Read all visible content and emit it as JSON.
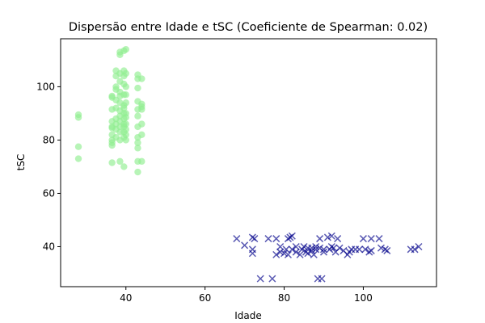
{
  "chart_data": {
    "type": "scatter",
    "title": "Dispersão entre Idade e tSC (Coeficiente de Spearman: 0.02)",
    "xlabel": "Idade",
    "ylabel": "tSC",
    "xlim": [
      23.5,
      118.5
    ],
    "ylim": [
      25,
      118
    ],
    "xticks": [
      40,
      60,
      80,
      100
    ],
    "yticks": [
      40,
      60,
      80,
      100
    ],
    "grid": false,
    "series": [
      {
        "marker": "circle",
        "color": "#90ee90",
        "points": [
          [
            28,
            89.5
          ],
          [
            28,
            88.5
          ],
          [
            28,
            77.5
          ],
          [
            28,
            73
          ],
          [
            36.5,
            96.5
          ],
          [
            36.5,
            96
          ],
          [
            36.5,
            91.5
          ],
          [
            36.5,
            87
          ],
          [
            36.5,
            85
          ],
          [
            36.5,
            84.5
          ],
          [
            36.5,
            82
          ],
          [
            36.5,
            80
          ],
          [
            36.5,
            79
          ],
          [
            36.5,
            78
          ],
          [
            36.5,
            71.5
          ],
          [
            37.5,
            106
          ],
          [
            37.5,
            104
          ],
          [
            37.5,
            100
          ],
          [
            37.5,
            99
          ],
          [
            37.5,
            95
          ],
          [
            37.5,
            92
          ],
          [
            37.5,
            88
          ],
          [
            37.5,
            86
          ],
          [
            37.5,
            84
          ],
          [
            37.5,
            81
          ],
          [
            38.5,
            113
          ],
          [
            38.5,
            112
          ],
          [
            38.5,
            105
          ],
          [
            38.5,
            102
          ],
          [
            38.5,
            98
          ],
          [
            38.5,
            96.5
          ],
          [
            38.5,
            94
          ],
          [
            38.5,
            91
          ],
          [
            38.5,
            89
          ],
          [
            38.5,
            87
          ],
          [
            38.5,
            85
          ],
          [
            38.5,
            83
          ],
          [
            38.5,
            80
          ],
          [
            38.5,
            72
          ],
          [
            39.5,
            113.5
          ],
          [
            39.5,
            106
          ],
          [
            39.5,
            104
          ],
          [
            39.5,
            101
          ],
          [
            39.5,
            97
          ],
          [
            39.5,
            93
          ],
          [
            39.5,
            92
          ],
          [
            39.5,
            90
          ],
          [
            39.5,
            88
          ],
          [
            39.5,
            86
          ],
          [
            39.5,
            85
          ],
          [
            39.5,
            83
          ],
          [
            39.5,
            81
          ],
          [
            39.5,
            70
          ],
          [
            40,
            114
          ],
          [
            40,
            105
          ],
          [
            40,
            100
          ],
          [
            40,
            97
          ],
          [
            40,
            94
          ],
          [
            40,
            90
          ],
          [
            40,
            88.5
          ],
          [
            40,
            86
          ],
          [
            40,
            84
          ],
          [
            40,
            82
          ],
          [
            40,
            80
          ],
          [
            43,
            104.5
          ],
          [
            43,
            103
          ],
          [
            43,
            99.5
          ],
          [
            43,
            94.5
          ],
          [
            43,
            91.5
          ],
          [
            43,
            89
          ],
          [
            43,
            85
          ],
          [
            43,
            81
          ],
          [
            43,
            79
          ],
          [
            43,
            77
          ],
          [
            43,
            72
          ],
          [
            43,
            68
          ],
          [
            44,
            103
          ],
          [
            44,
            93.5
          ],
          [
            44,
            92.5
          ],
          [
            44,
            91.5
          ],
          [
            44,
            86
          ],
          [
            44,
            82
          ],
          [
            44,
            72
          ]
        ]
      },
      {
        "marker": "x",
        "color": "#00008b",
        "points": [
          [
            68,
            43
          ],
          [
            70,
            40.5
          ],
          [
            72,
            43.5
          ],
          [
            72,
            39
          ],
          [
            72,
            37.5
          ],
          [
            72.5,
            43
          ],
          [
            74,
            28
          ],
          [
            76,
            43
          ],
          [
            77,
            28
          ],
          [
            78,
            43
          ],
          [
            78,
            37
          ],
          [
            79,
            38
          ],
          [
            79,
            40
          ],
          [
            80,
            37.5
          ],
          [
            80.5,
            39
          ],
          [
            81,
            43
          ],
          [
            81,
            37
          ],
          [
            81.5,
            43.5
          ],
          [
            82,
            44
          ],
          [
            82,
            39
          ],
          [
            83,
            40
          ],
          [
            83,
            38
          ],
          [
            84,
            37
          ],
          [
            84.5,
            39
          ],
          [
            85,
            40
          ],
          [
            85.5,
            38
          ],
          [
            86,
            39.5
          ],
          [
            86,
            37.5
          ],
          [
            87,
            39.5
          ],
          [
            87,
            38.5
          ],
          [
            87.5,
            37
          ],
          [
            88,
            40
          ],
          [
            88,
            39
          ],
          [
            88.5,
            28
          ],
          [
            89,
            43
          ],
          [
            89,
            39.5
          ],
          [
            89.5,
            28
          ],
          [
            90,
            39
          ],
          [
            90,
            38
          ],
          [
            91,
            43.5
          ],
          [
            91.5,
            39
          ],
          [
            92,
            44
          ],
          [
            92,
            40
          ],
          [
            92.5,
            39.5
          ],
          [
            93,
            38
          ],
          [
            93.5,
            43
          ],
          [
            94,
            39.5
          ],
          [
            95,
            38.5
          ],
          [
            96,
            37
          ],
          [
            96.5,
            38
          ],
          [
            97,
            39
          ],
          [
            98,
            39
          ],
          [
            99,
            39
          ],
          [
            100,
            43
          ],
          [
            100.5,
            39
          ],
          [
            101.5,
            38
          ],
          [
            102,
            38.5
          ],
          [
            102,
            43
          ],
          [
            104,
            43
          ],
          [
            104.5,
            39.5
          ],
          [
            105.5,
            39
          ],
          [
            106,
            38.5
          ],
          [
            112,
            39
          ],
          [
            113,
            39
          ],
          [
            114,
            40
          ]
        ]
      }
    ]
  }
}
